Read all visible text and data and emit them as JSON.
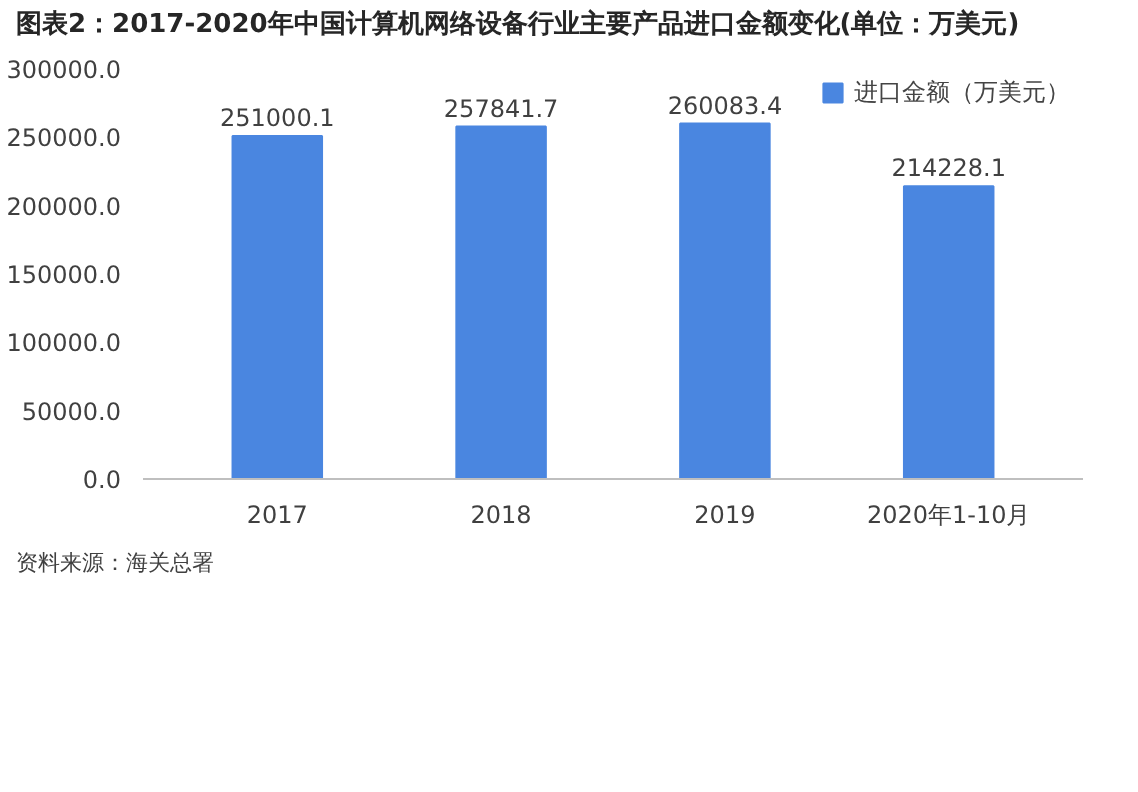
{
  "chart_data": {
    "type": "bar",
    "title": "图表2：2017-2020年中国计算机网络设备行业主要产品进口金额变化(单位：万美元)",
    "categories": [
      "2017",
      "2018",
      "2019",
      "2020年1-10月"
    ],
    "series": [
      {
        "name": "进口金额（万美元）",
        "color": "#4a86e0",
        "values": [
          251000.1,
          257841.7,
          260083.4,
          214228.1
        ]
      }
    ],
    "ylim": [
      0,
      300000
    ],
    "yticks": [
      {
        "value": 0,
        "label": "0.0"
      },
      {
        "value": 50000,
        "label": "50000.0"
      },
      {
        "value": 100000,
        "label": "100000.0"
      },
      {
        "value": 150000,
        "label": "150000.0"
      },
      {
        "value": 200000,
        "label": "200000.0"
      },
      {
        "value": 250000,
        "label": "250000.0"
      },
      {
        "value": 300000,
        "label": "300000.0"
      }
    ],
    "data_labels": true,
    "grid": false,
    "legend": "top right",
    "annotations": [
      "资料来源：海关总署"
    ]
  }
}
